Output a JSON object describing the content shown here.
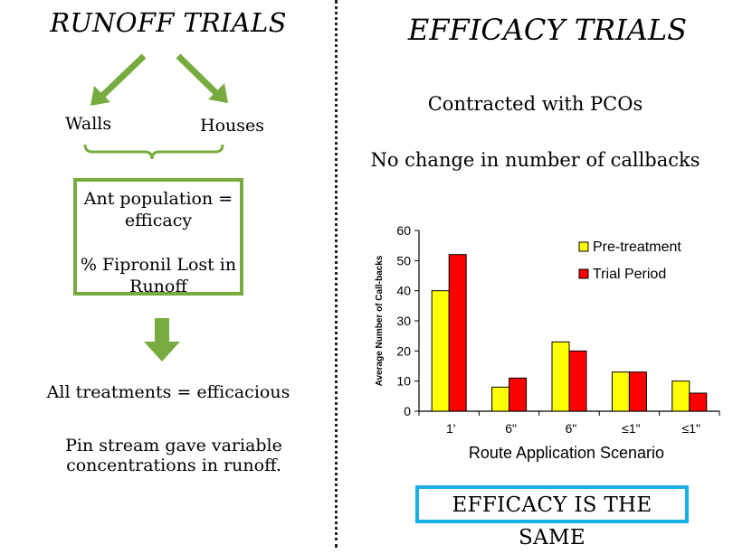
{
  "left": {
    "title": "RUNOFF TRIALS",
    "walls_label": "Walls",
    "houses_label": "Houses",
    "box_line1": "Ant population =",
    "box_line2": "efficacy",
    "box_line3": "% Fipronil Lost in",
    "box_line4": "Runoff",
    "result": "All treatments = efficacious",
    "note_line1": "Pin stream gave variable",
    "note_line2": "concentrations in runoff.",
    "arrow_color": "#77ab3f"
  },
  "right": {
    "title": "EFFICACY TRIALS",
    "line1": "Contracted with PCOs",
    "line2": "No change in number of callbacks",
    "conclusion": "EFFICACY IS THE SAME",
    "conclusion_border_color": "#1aaee6"
  },
  "chart_data": {
    "type": "bar",
    "title": "",
    "xlabel": "Route Application Scenario",
    "ylabel": "Average Number of Call-backs",
    "ylim": [
      0,
      60
    ],
    "yticks": [
      0,
      10,
      20,
      30,
      40,
      50,
      60
    ],
    "categories": [
      "1'",
      "6\"",
      "6\"",
      "≤1\"",
      "≤1\""
    ],
    "series": [
      {
        "name": "Pre-treatment",
        "color": "#ffff00",
        "values": [
          40,
          8,
          23,
          13,
          10
        ]
      },
      {
        "name": "Trial Period",
        "color": "#ff0000",
        "values": [
          52,
          11,
          20,
          13,
          6
        ]
      }
    ],
    "legend": "top-right"
  }
}
